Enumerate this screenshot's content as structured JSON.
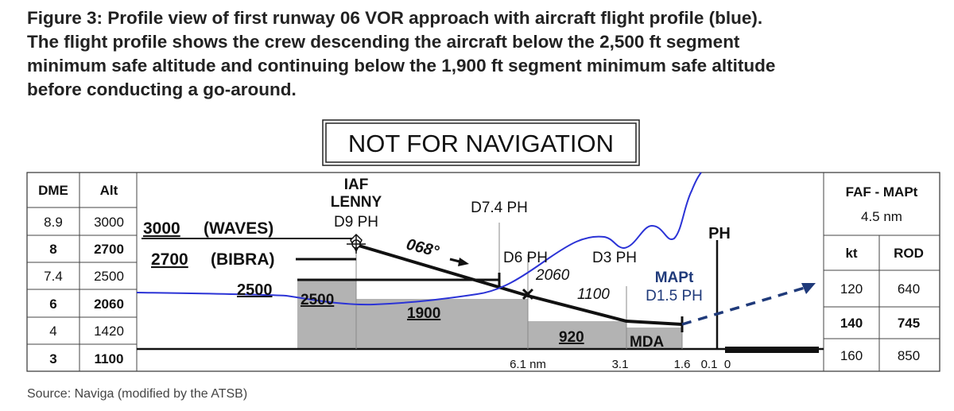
{
  "caption": {
    "lines": [
      "Figure 3: Profile view of first runway 06 VOR approach with aircraft flight profile (blue).",
      "The flight profile shows the crew descending the aircraft below the 2,500 ft segment",
      "minimum safe altitude and continuing below the 1,900 ft segment minimum safe altitude",
      "before conducting a go-around."
    ]
  },
  "stamp": "NOT FOR NAVIGATION",
  "dme_table": {
    "headers": [
      "DME",
      "Alt"
    ],
    "rows": [
      {
        "dme": "8.9",
        "alt": "3000"
      },
      {
        "dme": "8",
        "alt": "2700"
      },
      {
        "dme": "7.4",
        "alt": "2500"
      },
      {
        "dme": "6",
        "alt": "2060"
      },
      {
        "dme": "4",
        "alt": "1420"
      },
      {
        "dme": "3",
        "alt": "1100"
      }
    ]
  },
  "profile": {
    "iaf_label_1": "IAF",
    "iaf_label_2": "LENNY",
    "iaf_label_3": "D9 PH",
    "fix_d74": "D7.4 PH",
    "alt_3000": "3000",
    "alt_3000_name": "(WAVES)",
    "alt_2700": "2700",
    "alt_2700_name": "(BIBRA)",
    "alt_2500_arrow": "2500",
    "course": "068°",
    "fix_d6": "D6 PH",
    "fix_d3": "D3 PH",
    "alt_2060": "2060",
    "alt_1100": "1100",
    "mapt_1": "MAPt",
    "mapt_2": "D1.5 PH",
    "ph": "PH",
    "msa_2500": "2500",
    "msa_1900": "1900",
    "msa_920": "920",
    "mda": "MDA",
    "dist_61": "6.1 nm",
    "dist_31": "3.1",
    "dist_16": "1.6",
    "dist_01": "0.1",
    "dist_0": "0"
  },
  "rate_table": {
    "header_1": "FAF - MAPt",
    "header_2": "4.5 nm",
    "columns": [
      "kt",
      "ROD"
    ],
    "rows": [
      {
        "kt": "120",
        "rod": "640"
      },
      {
        "kt": "140",
        "rod": "745"
      },
      {
        "kt": "160",
        "rod": "850"
      }
    ]
  },
  "colors": {
    "flight_path": "#2b33d6",
    "terrain": "#b3b3b3",
    "missed_approach": "#1f3a7a"
  },
  "source": "Source: Naviga (modified by the ATSB)"
}
